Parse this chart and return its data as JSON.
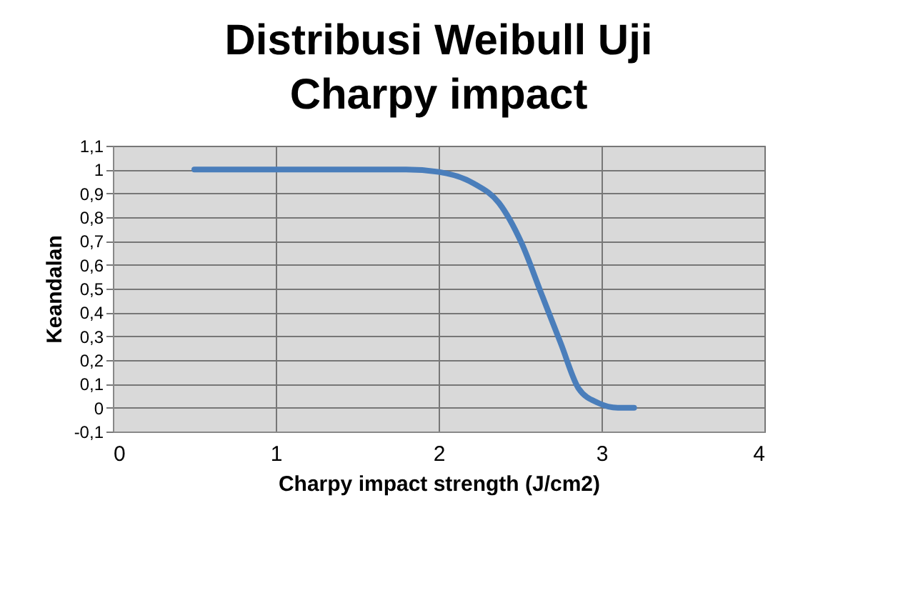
{
  "chart_data": {
    "type": "line",
    "title": "Distribusi Weibull Uji Charpy impact",
    "xlabel": "Charpy impact strength (J/cm2)",
    "ylabel": "Keandalan",
    "x": [
      0.5,
      1.0,
      1.5,
      1.8,
      2.0,
      2.22,
      2.37,
      2.51,
      2.63,
      2.75,
      2.86,
      2.98,
      3.1,
      3.2
    ],
    "series": [
      {
        "color": "#4a7ebb",
        "values": [
          1.0,
          1.0,
          1.0,
          1.0,
          0.99,
          0.94,
          0.86,
          0.69,
          0.48,
          0.27,
          0.08,
          0.02,
          0.0,
          0.0
        ]
      }
    ],
    "xlim": [
      0,
      4
    ],
    "xticks": [
      0,
      1,
      2,
      3,
      4
    ],
    "ylim": [
      -0.1,
      1.1
    ],
    "yticks": [
      {
        "value": -0.1,
        "label": "-0,1"
      },
      0,
      {
        "value": 0.1,
        "label": "0,1"
      },
      {
        "value": 0.2,
        "label": "0,2"
      },
      {
        "value": 0.3,
        "label": "0,3"
      },
      {
        "value": 0.4,
        "label": "0,4"
      },
      {
        "value": 0.5,
        "label": "0,5"
      },
      {
        "value": 0.6,
        "label": "0,6"
      },
      {
        "value": 0.7,
        "label": "0,7"
      },
      {
        "value": 0.8,
        "label": "0,8"
      },
      {
        "value": 0.9,
        "label": "0,9"
      },
      1,
      {
        "value": 1.1,
        "label": "1,1"
      }
    ],
    "grid": true,
    "marker": "none",
    "line_style": "solid"
  }
}
